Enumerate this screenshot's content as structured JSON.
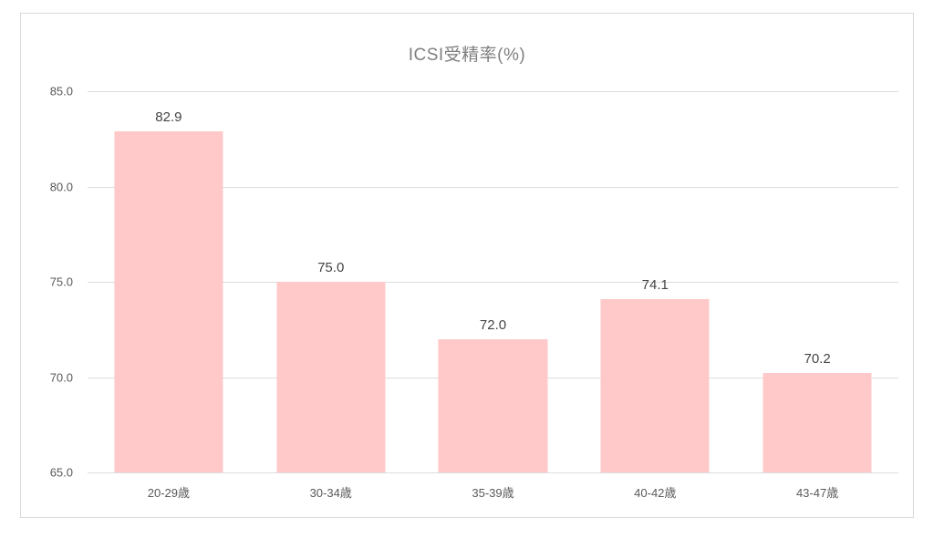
{
  "title": "ICSI受精率(%)",
  "chart_data": {
    "type": "bar",
    "title": "ICSI受精率(%)",
    "categories": [
      "20-29歳",
      "30-34歳",
      "35-39歳",
      "40-42歳",
      "43-47歳"
    ],
    "values": [
      82.9,
      75.0,
      72.0,
      74.1,
      70.2
    ],
    "data_labels": [
      "82.9",
      "75.0",
      "72.0",
      "74.1",
      "70.2"
    ],
    "xlabel": "",
    "ylabel": "",
    "ylim": [
      65.0,
      85.0
    ],
    "ytick_step": 5.0,
    "yticks": [
      "85.0",
      "80.0",
      "75.0",
      "70.0",
      "65.0"
    ],
    "grid": true,
    "legend_position": "none"
  },
  "colors": {
    "bar_fill": "#ffc9c9",
    "title_text": "#7f7f7f",
    "axis_tick_text": "#595959",
    "data_label_text": "#444444",
    "gridline": "#dcdcdc",
    "frame_border": "#d9d9d9",
    "background": "#ffffff"
  }
}
